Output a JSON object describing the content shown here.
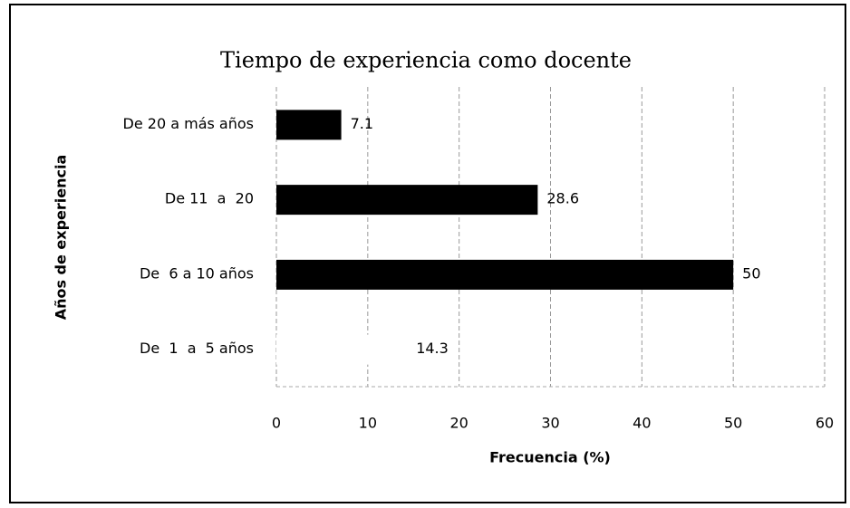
{
  "chart_data": {
    "type": "hbar",
    "title": "Tiempo de experiencia como docente",
    "x_label": "Frecuencia (%)",
    "y_label": "Años de experiencia",
    "categories": [
      "De 20 a más años",
      "De 11  a  20",
      "De  6 a 10 años",
      "De  1  a  5 años"
    ],
    "values": [
      7.1,
      28.6,
      50,
      14.3
    ],
    "colors": [
      "#000000",
      "#000000",
      "#000000",
      "#ffffff"
    ],
    "xlim": [
      0,
      60
    ],
    "xticks": [
      0,
      10,
      20,
      30,
      40,
      50,
      60
    ],
    "grid": true
  }
}
